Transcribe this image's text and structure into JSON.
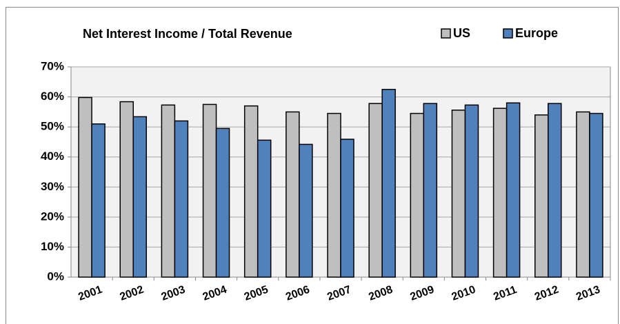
{
  "chart_data": {
    "type": "bar",
    "title": "Net Interest Income / Total Revenue",
    "categories": [
      "2001",
      "2002",
      "2003",
      "2004",
      "2005",
      "2006",
      "2007",
      "2008",
      "2009",
      "2010",
      "2011",
      "2012",
      "2013"
    ],
    "series": [
      {
        "name": "US",
        "color": "#bfbfbf",
        "values": [
          59.8,
          58.4,
          57.3,
          57.5,
          57.0,
          55.0,
          54.5,
          57.8,
          54.5,
          55.6,
          56.2,
          54.0,
          55.0
        ]
      },
      {
        "name": "Europe",
        "color": "#4f81bd",
        "values": [
          51.0,
          53.4,
          52.0,
          49.5,
          45.6,
          44.2,
          45.9,
          62.5,
          57.8,
          57.3,
          58.0,
          57.8,
          54.5
        ]
      }
    ],
    "ylim": [
      0,
      70
    ],
    "yticks": [
      {
        "value": 0,
        "label": "0%"
      },
      {
        "value": 10,
        "label": "10%"
      },
      {
        "value": 20,
        "label": "20%"
      },
      {
        "value": 30,
        "label": "30%"
      },
      {
        "value": 40,
        "label": "40%"
      },
      {
        "value": 50,
        "label": "50%"
      },
      {
        "value": 60,
        "label": "60%"
      },
      {
        "value": 70,
        "label": "70%"
      }
    ],
    "grid": true,
    "legend": "top-right"
  }
}
